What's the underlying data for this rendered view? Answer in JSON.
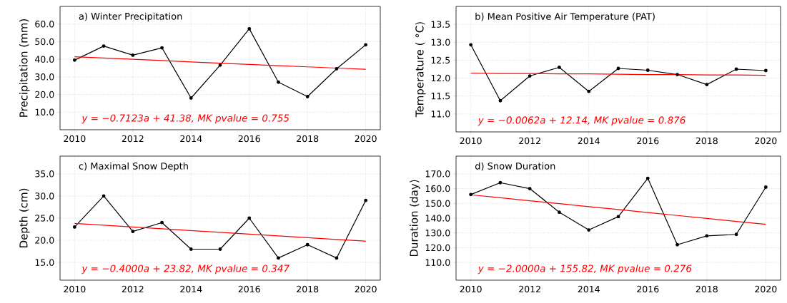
{
  "chart_data": [
    {
      "type": "line",
      "title": "a) Winter Precipitation",
      "ylabel": "Precipitation (mm)",
      "x": [
        2010,
        2011,
        2012,
        2013,
        2014,
        2015,
        2016,
        2017,
        2018,
        2019,
        2020
      ],
      "xlim": [
        2009.5,
        2020.5
      ],
      "xticks": [
        2010,
        2012,
        2014,
        2016,
        2018,
        2020
      ],
      "ylim": [
        0,
        70
      ],
      "yticks": [
        {
          "value": 10,
          "label": "10.0"
        },
        {
          "value": 20,
          "label": "20.0"
        },
        {
          "value": 30,
          "label": "30.0"
        },
        {
          "value": 40,
          "label": "40.0"
        },
        {
          "value": 50,
          "label": "50.0"
        },
        {
          "value": 60,
          "label": "60.0"
        }
      ],
      "grid": true,
      "annotations": [
        "y = −0.7123a + 41.38, MK pvalue = 0.755"
      ],
      "series": [
        {
          "color": "#000000",
          "marker": "circle",
          "values": [
            39.5,
            47.5,
            42.3,
            46.5,
            18.0,
            36.7,
            57.3,
            27.0,
            18.8,
            34.6,
            48.2
          ]
        },
        {
          "type": "line",
          "color": "#ff0000",
          "marker": "none",
          "values": [
            41.4,
            40.7,
            40.0,
            39.3,
            38.5,
            37.8,
            37.1,
            36.4,
            35.7,
            35.0,
            34.3
          ]
        }
      ]
    },
    {
      "type": "line",
      "title": "b) Mean Positive Air Temperature (PAT)",
      "ylabel": "Temperature ( °C)",
      "x": [
        2010,
        2011,
        2012,
        2013,
        2014,
        2015,
        2016,
        2017,
        2018,
        2019,
        2020
      ],
      "xlim": [
        2009.5,
        2020.5
      ],
      "xticks": [
        2010,
        2012,
        2014,
        2016,
        2018,
        2020
      ],
      "ylim": [
        10.5,
        14.0
      ],
      "yticks": [
        {
          "value": 11.0,
          "label": "11.0"
        },
        {
          "value": 11.5,
          "label": "11.5"
        },
        {
          "value": 12.0,
          "label": "12.0"
        },
        {
          "value": 12.5,
          "label": "12.5"
        },
        {
          "value": 13.0,
          "label": "13.0"
        },
        {
          "value": 13.5,
          "label": "13.5"
        }
      ],
      "grid": true,
      "annotations": [
        "y = −0.0062a + 12.14, MK pvalue = 0.876"
      ],
      "series": [
        {
          "color": "#000000",
          "marker": "circle",
          "values": [
            12.93,
            11.37,
            12.06,
            12.3,
            11.63,
            12.27,
            12.22,
            12.1,
            11.82,
            12.25,
            12.21
          ]
        },
        {
          "type": "line",
          "color": "#ff0000",
          "marker": "none",
          "values": [
            12.14,
            12.13,
            12.13,
            12.12,
            12.12,
            12.11,
            12.1,
            12.1,
            12.09,
            12.09,
            12.08
          ]
        }
      ]
    },
    {
      "type": "line",
      "title": "c) Maximal Snow Depth",
      "ylabel": "Depth (cm)",
      "x": [
        2010,
        2011,
        2012,
        2013,
        2014,
        2015,
        2016,
        2017,
        2018,
        2019,
        2020
      ],
      "xlim": [
        2009.5,
        2020.5
      ],
      "xticks": [
        2010,
        2012,
        2014,
        2016,
        2018,
        2020
      ],
      "ylim": [
        11,
        39
      ],
      "yticks": [
        {
          "value": 15,
          "label": "15.0"
        },
        {
          "value": 20,
          "label": "20.0"
        },
        {
          "value": 25,
          "label": "25.0"
        },
        {
          "value": 30,
          "label": "30.0"
        },
        {
          "value": 35,
          "label": "35.0"
        }
      ],
      "grid": true,
      "annotations": [
        "y = −0.4000a + 23.82, MK pvalue = 0.347"
      ],
      "series": [
        {
          "color": "#000000",
          "marker": "circle",
          "values": [
            23,
            30,
            22,
            24,
            18,
            18,
            25,
            16,
            19,
            16,
            29
          ]
        },
        {
          "type": "line",
          "color": "#ff0000",
          "marker": "none",
          "values": [
            23.8,
            23.4,
            23.0,
            22.6,
            22.2,
            21.8,
            21.4,
            21.0,
            20.6,
            20.2,
            19.8
          ]
        }
      ]
    },
    {
      "type": "line",
      "title": "d) Snow Duration",
      "ylabel": "Duration (day)",
      "x": [
        2010,
        2011,
        2012,
        2013,
        2014,
        2015,
        2016,
        2017,
        2018,
        2019,
        2020
      ],
      "xlim": [
        2009.5,
        2020.5
      ],
      "xticks": [
        2010,
        2012,
        2014,
        2016,
        2018,
        2020
      ],
      "ylim": [
        98,
        182
      ],
      "yticks": [
        {
          "value": 110,
          "label": "110.0"
        },
        {
          "value": 120,
          "label": "120.0"
        },
        {
          "value": 130,
          "label": "130.0"
        },
        {
          "value": 140,
          "label": "140.0"
        },
        {
          "value": 150,
          "label": "150.0"
        },
        {
          "value": 160,
          "label": "160.0"
        },
        {
          "value": 170,
          "label": "170.0"
        }
      ],
      "grid": true,
      "annotations": [
        "y = −2.0000a + 155.82, MK pvalue = 0.276"
      ],
      "series": [
        {
          "color": "#000000",
          "marker": "circle",
          "values": [
            156,
            164,
            160,
            144,
            132,
            141,
            167,
            122,
            128,
            129,
            161
          ]
        },
        {
          "type": "line",
          "color": "#ff0000",
          "marker": "none",
          "values": [
            155.8,
            153.8,
            151.8,
            149.8,
            147.8,
            145.8,
            143.8,
            141.8,
            139.8,
            137.8,
            135.8
          ]
        }
      ]
    }
  ]
}
